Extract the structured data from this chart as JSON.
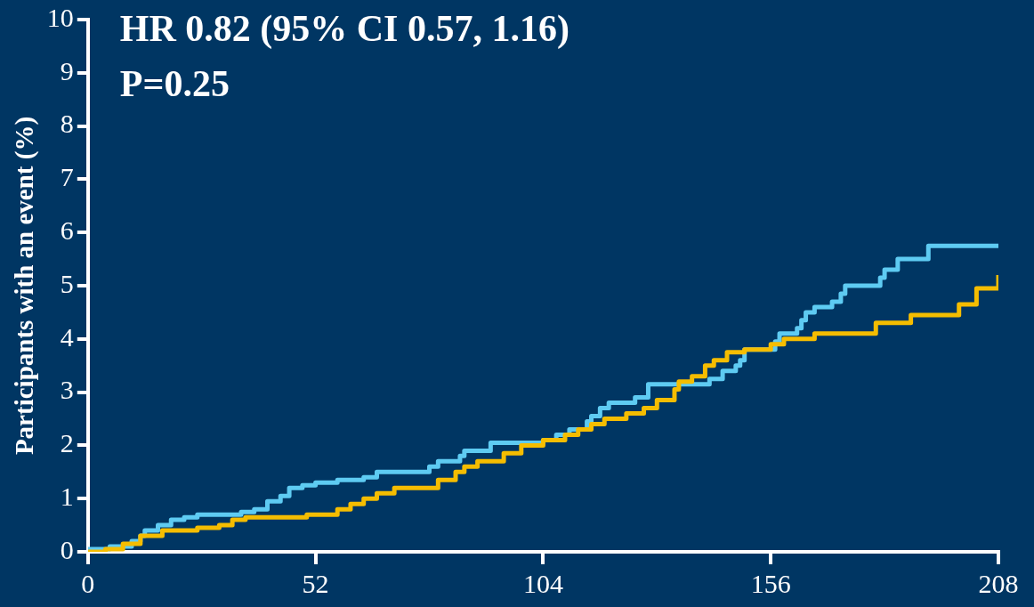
{
  "chart_data": {
    "type": "step",
    "ylabel": "Participants with an event (%)",
    "annotations": [
      "HR 0.82 (95% CI 0.57, 1.16)",
      "P=0.25"
    ],
    "xlim": [
      0,
      208
    ],
    "xticks": [
      0,
      52,
      104,
      156,
      208
    ],
    "ylim": [
      0,
      10
    ],
    "yticks": [
      0,
      1,
      2,
      3,
      4,
      5,
      6,
      7,
      8,
      9,
      10
    ],
    "grid": false,
    "legend": false,
    "marker": "none",
    "line_style": "solid",
    "series": [
      {
        "color": "#f5bd00",
        "x": [
          0,
          4,
          8,
          12,
          17,
          25,
          30,
          33,
          36,
          50,
          57,
          60,
          63,
          66,
          70,
          80,
          84,
          86,
          89,
          95,
          99,
          104,
          109,
          112,
          115,
          118,
          123,
          127,
          130,
          134,
          135,
          138,
          141,
          143,
          146,
          150,
          156,
          159,
          166,
          180,
          188,
          199,
          203,
          208
        ],
        "values": [
          0,
          0.05,
          0.15,
          0.3,
          0.4,
          0.45,
          0.5,
          0.6,
          0.65,
          0.7,
          0.8,
          0.9,
          1.0,
          1.1,
          1.2,
          1.35,
          1.5,
          1.6,
          1.7,
          1.85,
          2.0,
          2.1,
          2.2,
          2.3,
          2.4,
          2.5,
          2.6,
          2.7,
          2.85,
          3.05,
          3.2,
          3.3,
          3.5,
          3.6,
          3.75,
          3.8,
          3.9,
          4.0,
          4.1,
          4.3,
          4.45,
          4.65,
          4.95,
          5.2
        ]
      },
      {
        "color": "#5ecbf2",
        "x": [
          0,
          5,
          10,
          12,
          13,
          16,
          19,
          22,
          25,
          35,
          38,
          41,
          44,
          46,
          49,
          52,
          57,
          63,
          66,
          78,
          80,
          85,
          86,
          92,
          104,
          107,
          110,
          114,
          115,
          117,
          119,
          125,
          128,
          142,
          145,
          148,
          149,
          150,
          157,
          158,
          162,
          163,
          164,
          166,
          170,
          172,
          173,
          181,
          182,
          185,
          192,
          208
        ],
        "values": [
          0.05,
          0.1,
          0.2,
          0.3,
          0.4,
          0.5,
          0.6,
          0.65,
          0.7,
          0.75,
          0.8,
          0.95,
          1.05,
          1.2,
          1.25,
          1.3,
          1.35,
          1.4,
          1.5,
          1.6,
          1.7,
          1.8,
          1.9,
          2.05,
          2.1,
          2.2,
          2.3,
          2.45,
          2.55,
          2.7,
          2.8,
          2.9,
          3.15,
          3.25,
          3.4,
          3.5,
          3.6,
          3.8,
          3.95,
          4.1,
          4.2,
          4.35,
          4.5,
          4.6,
          4.7,
          4.85,
          5.0,
          5.15,
          5.3,
          5.5,
          5.75,
          5.75
        ]
      }
    ]
  }
}
